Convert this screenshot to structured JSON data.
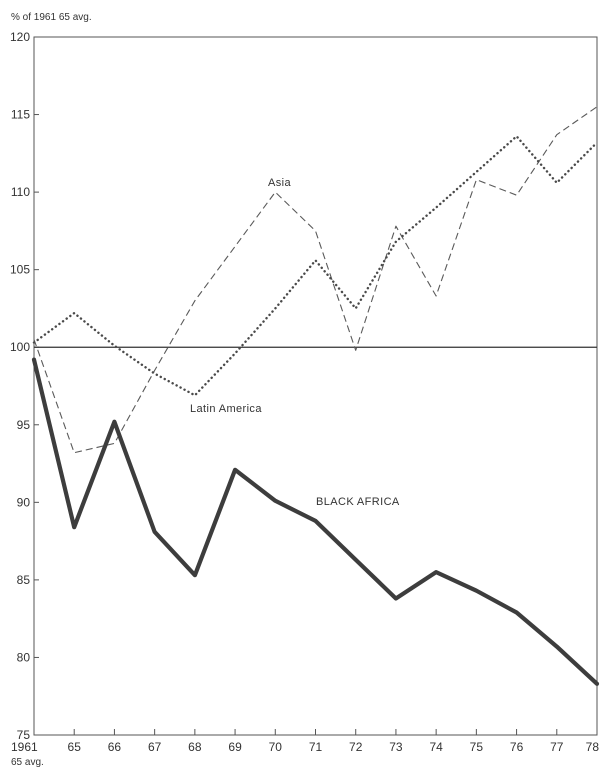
{
  "chart_data": {
    "type": "line",
    "ylabel": "% of 1961 65 avg.",
    "x": [
      "1961",
      "65",
      "66",
      "67",
      "68",
      "69",
      "70",
      "71",
      "72",
      "73",
      "74",
      "75",
      "76",
      "77",
      "78"
    ],
    "x_sublabels": [
      "65 avg.",
      "",
      "",
      "",
      "",
      "",
      "",
      "",
      "",
      "",
      "",
      "",
      "",
      "",
      ""
    ],
    "ylim": [
      75,
      120
    ],
    "yticks": [
      75,
      80,
      85,
      90,
      95,
      100,
      105,
      110,
      115,
      120
    ],
    "reference_line": 100,
    "grid": false,
    "series": [
      {
        "name": "Asia",
        "style": "dashed",
        "color": "#5a5a5a",
        "values": [
          100.5,
          93.2,
          93.8,
          98.5,
          103,
          106.5,
          110,
          107.5,
          99.8,
          107.8,
          103.3,
          110.8,
          109.8,
          113.7,
          115.5
        ]
      },
      {
        "name": "Latin America",
        "style": "dotted",
        "color": "#4a4a4a",
        "values": [
          100.3,
          102.2,
          100.1,
          98.3,
          96.9,
          99.6,
          102.5,
          105.6,
          102.5,
          106.8,
          109,
          111.3,
          113.6,
          110.6,
          113.2
        ]
      },
      {
        "name": "BLACK AFRICA",
        "style": "solid-thick",
        "color": "#3d3d3d",
        "values": [
          99.2,
          88.4,
          95.2,
          88.1,
          85.3,
          92.1,
          90.1,
          88.8,
          86.3,
          83.8,
          85.5,
          84.3,
          82.9,
          80.7,
          78.3
        ]
      }
    ]
  }
}
